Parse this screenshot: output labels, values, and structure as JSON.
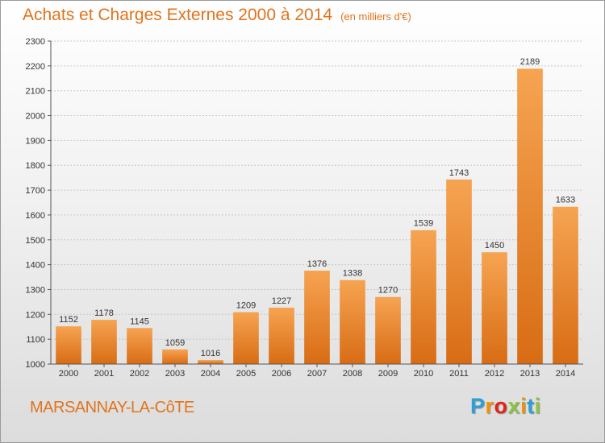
{
  "header": {
    "title": "Achats et Charges Externes 2000 à 2014",
    "subtitle": "(en milliers d'€)"
  },
  "footer": {
    "location": "MARSANNAY-LA-CôTE",
    "brand": "Proxiti",
    "brand_letters": [
      {
        "char": "P",
        "color": "#2aa0d8"
      },
      {
        "char": "r",
        "color": "#f39200"
      },
      {
        "char": "o",
        "color": "#e2231a"
      },
      {
        "char": "x",
        "color": "#8ac53f"
      },
      {
        "char": "i",
        "color": "#f39200"
      },
      {
        "char": "t",
        "color": "#2aa0d8"
      },
      {
        "char": "i",
        "color": "#8ac53f"
      }
    ]
  },
  "colors": {
    "accent": "#e0741c",
    "bar_top": "#f6a452",
    "bar_bottom": "#d86c14"
  },
  "chart_data": {
    "type": "bar",
    "title": "Achats et Charges Externes 2000 à 2014",
    "subtitle": "(en milliers d'€)",
    "categories": [
      "2000",
      "2001",
      "2002",
      "2003",
      "2004",
      "2005",
      "2006",
      "2007",
      "2008",
      "2009",
      "2010",
      "2011",
      "2012",
      "2013",
      "2014"
    ],
    "values": [
      1152,
      1178,
      1145,
      1059,
      1016,
      1209,
      1227,
      1376,
      1338,
      1270,
      1539,
      1743,
      1450,
      2189,
      1633
    ],
    "ylim": [
      1000,
      2300
    ],
    "yticks": [
      1000,
      1100,
      1200,
      1300,
      1400,
      1500,
      1600,
      1700,
      1800,
      1900,
      2000,
      2100,
      2200,
      2300
    ],
    "grid": true,
    "xlabel": "",
    "ylabel": ""
  }
}
